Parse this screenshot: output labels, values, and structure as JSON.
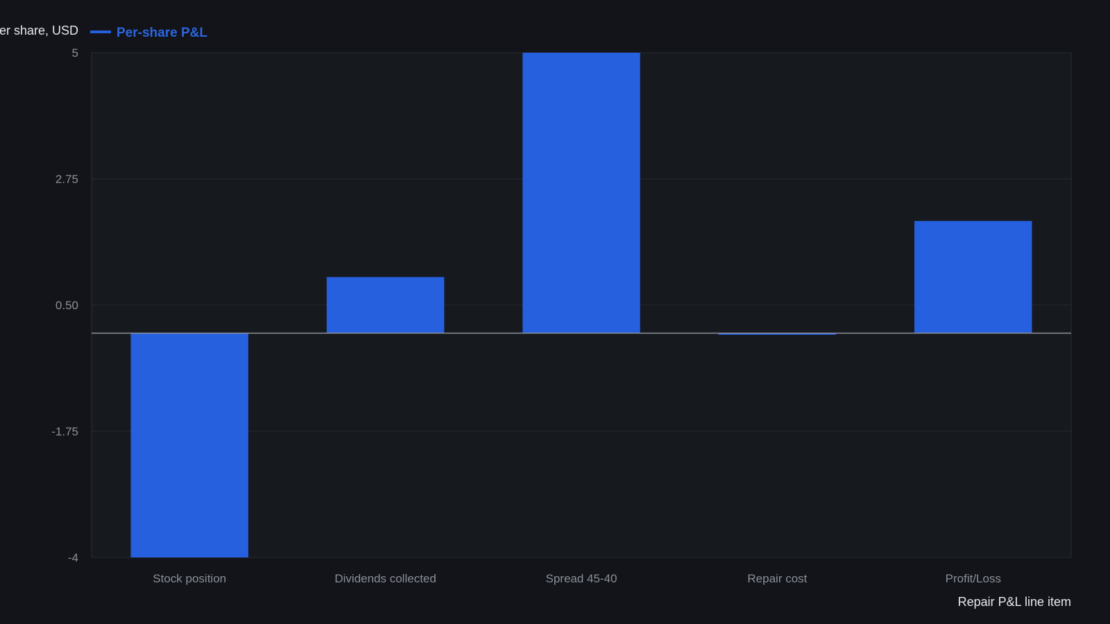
{
  "chart_data": {
    "type": "bar",
    "categories": [
      "Stock position",
      "Dividends collected",
      "Spread 45-40",
      "Repair cost",
      "Profit/Loss"
    ],
    "series": [
      {
        "name": "Per-share P&L",
        "values": [
          -4.0,
          1.0,
          5.0,
          -0.03,
          2.0
        ]
      }
    ],
    "title": "",
    "xlabel": "Repair P&L line item",
    "ylabel": "Per share, USD",
    "ylim": [
      -4,
      5
    ],
    "yticks": [
      -4,
      -1.75,
      0.5,
      2.75,
      5
    ],
    "ytick_labels": [
      "-4",
      "-1.75",
      "0.50",
      "2.75",
      "5"
    ],
    "grid": true,
    "legend_position": "top-left"
  },
  "colors": {
    "background": "#121419",
    "plot_background": "#16191e",
    "bar": "#2660de",
    "grid": "#262a31",
    "zero_line": "#8d9199",
    "border": "#2b2f36",
    "legend_text": "#2d65df"
  }
}
